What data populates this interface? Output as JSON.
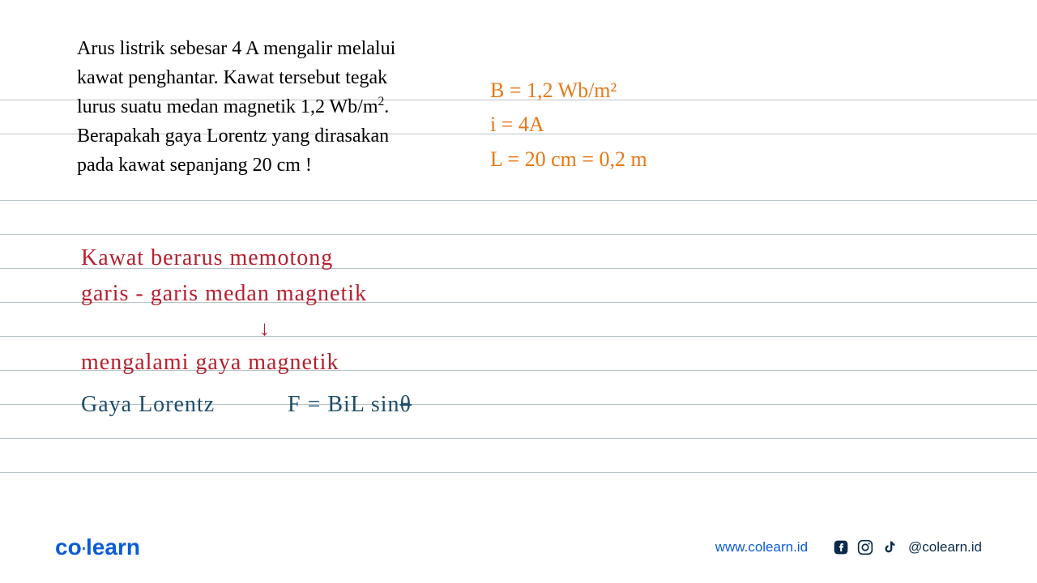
{
  "ruled_lines": {
    "positions": [
      123,
      165,
      247,
      289,
      331,
      373,
      415,
      457,
      499,
      541,
      583
    ],
    "color": "#b8c4c8"
  },
  "question": {
    "text_html": "Arus listrik sebesar 4 A mengalir melalui kawat penghantar. Kawat tersebut tegak lurus suatu medan magnetik 1,2 Wb/m<sup>2</sup>. Berapakah gaya Lorentz yang dirasakan pada kawat sepanjang 20 cm !",
    "color": "#000000",
    "fontsize": 24
  },
  "given": {
    "color": "#e67817",
    "fontsize": 26,
    "lines": [
      "B = 1,2 Wb/m²",
      "i = 4A",
      "L = 20 cm = 0,2 m"
    ]
  },
  "explanation_red": {
    "color": "#b61f2e",
    "fontsize": 28,
    "line1": "Kawat  berarus  memotong",
    "line2": "garis - garis  medan  magnetik",
    "arrow": "↓",
    "line3": "mengalami  gaya  magnetik"
  },
  "lorentz": {
    "color": "#1e4d6b",
    "fontsize": 28,
    "label": "Gaya  Lorentz",
    "formula": "F = BiL sinθ"
  },
  "footer": {
    "logo_co": "co",
    "logo_dot": "·",
    "logo_learn": "learn",
    "logo_color": "#0b5cd6",
    "website": "www.colearn.id",
    "handle": "@colearn.id",
    "icon_color": "#0b2b4a"
  }
}
